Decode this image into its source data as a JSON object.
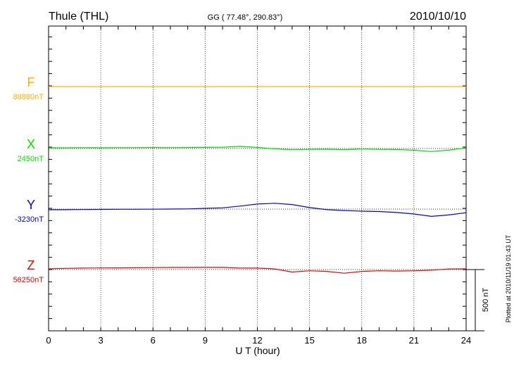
{
  "chart_data": {
    "type": "line",
    "title": "Thule (THL)",
    "subtitle": "GG ( 77.48°, 290.83°)",
    "date": "2010/10/10",
    "xlabel": "U T (hour)",
    "xlim": [
      0,
      24
    ],
    "xticks": [
      "0",
      "3",
      "6",
      "9",
      "12",
      "15",
      "18",
      "21",
      "24"
    ],
    "scale_label": "500 nT",
    "plotted_note": "Plotted at 2010/11/19 01:43 UT",
    "grid": true,
    "hours": [
      0,
      1,
      2,
      3,
      4,
      5,
      6,
      7,
      8,
      9,
      10,
      11,
      12,
      13,
      14,
      15,
      16,
      17,
      18,
      19,
      20,
      21,
      22,
      23,
      24
    ],
    "series": [
      {
        "name": "F",
        "baseline_label": "88880nT",
        "baseline": 88880,
        "color": "#ffb000",
        "values": [
          88880,
          88880,
          88880,
          88880,
          88880,
          88880,
          88880,
          88880,
          88880,
          88880,
          88880,
          88880,
          88880,
          88880,
          88880,
          88880,
          88880,
          88880,
          88880,
          88880,
          88880,
          88880,
          88880,
          88880,
          88880
        ]
      },
      {
        "name": "X",
        "baseline_label": "2450nT",
        "baseline": 2450,
        "color": "#00dd00",
        "values": [
          2456,
          2456,
          2457,
          2456,
          2457,
          2457,
          2458,
          2457,
          2458,
          2459,
          2461,
          2467,
          2459,
          2447,
          2440,
          2443,
          2444,
          2441,
          2446,
          2443,
          2442,
          2436,
          2425,
          2436,
          2456
        ]
      },
      {
        "name": "Y",
        "baseline_label": "-3230nT",
        "baseline": -3230,
        "color": "#0000ee",
        "values": [
          -3236,
          -3235,
          -3234,
          -3233,
          -3232,
          -3232,
          -3231,
          -3230,
          -3229,
          -3224,
          -3220,
          -3206,
          -3189,
          -3183,
          -3193,
          -3218,
          -3235,
          -3242,
          -3247,
          -3250,
          -3258,
          -3270,
          -3290,
          -3278,
          -3260
        ]
      },
      {
        "name": "Z",
        "baseline_label": "56250nT",
        "baseline": 56250,
        "color": "#ee0000",
        "values": [
          56256,
          56260,
          56262,
          56263,
          56264,
          56265,
          56266,
          56267,
          56267,
          56268,
          56268,
          56262,
          56262,
          56255,
          56230,
          56240,
          56235,
          56220,
          56235,
          56240,
          56238,
          56240,
          56245,
          56255,
          56256
        ]
      }
    ]
  }
}
